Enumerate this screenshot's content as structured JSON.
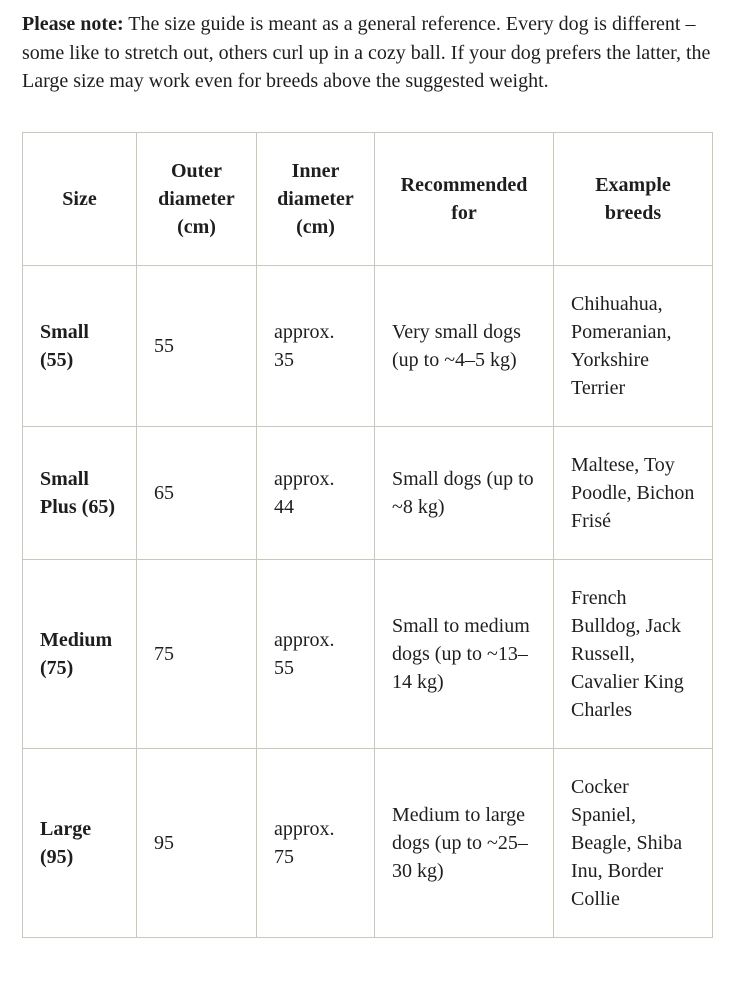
{
  "note": {
    "label": "Please note:",
    "text": " The size guide is meant as a general reference. Every dog is different – some like to stretch out, others curl up in a cozy ball. If your dog prefers the latter, the Large size may work even for breeds above the suggested weight."
  },
  "table": {
    "headers": [
      "Size",
      "Outer diameter (cm)",
      "Inner diameter (cm)",
      "Recommended for",
      "Example breeds"
    ],
    "rows": [
      {
        "size": "Small (55)",
        "outer_diameter": "55",
        "inner_diameter": "approx. 35",
        "recommended_for": "Very small dogs (up to ~4–5 kg)",
        "example_breeds": "Chihuahua, Pomeranian, Yorkshire Terrier"
      },
      {
        "size": "Small Plus (65)",
        "outer_diameter": "65",
        "inner_diameter": "approx. 44",
        "recommended_for": "Small dogs (up to ~8 kg)",
        "example_breeds": "Maltese, Toy Poodle, Bichon Frisé"
      },
      {
        "size": "Medium (75)",
        "outer_diameter": "75",
        "inner_diameter": "approx. 55",
        "recommended_for": "Small to medium dogs (up to ~13–14 kg)",
        "example_breeds": "French Bulldog, Jack Russell, Cavalier King Charles"
      },
      {
        "size": "Large (95)",
        "outer_diameter": "95",
        "inner_diameter": "approx. 75",
        "recommended_for": "Medium to large dogs (up to ~25–30 kg)",
        "example_breeds": "Cocker Spaniel, Beagle, Shiba Inu, Border Collie"
      }
    ]
  },
  "colors": {
    "table_border": "#ccc7bb",
    "text": "#1e1e1e",
    "background": "#ffffff"
  }
}
